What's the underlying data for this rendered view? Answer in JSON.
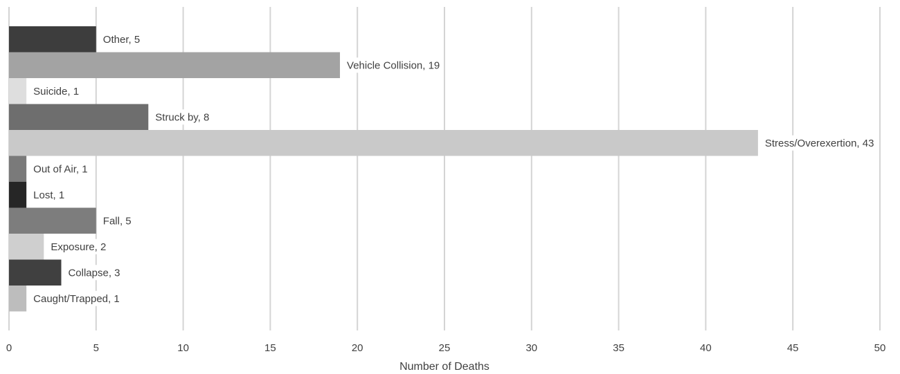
{
  "chart_data": {
    "type": "bar",
    "orientation": "horizontal",
    "title": "",
    "xlabel": "Number of Deaths",
    "ylabel": "",
    "xlim": [
      0,
      50
    ],
    "x_ticks": [
      0,
      5,
      10,
      15,
      20,
      25,
      30,
      35,
      40,
      45,
      50
    ],
    "grid": "vertical",
    "legend": "none",
    "bars": [
      {
        "category": "Other",
        "value": 5,
        "label": "Other, 5",
        "color": "#3d3d3d"
      },
      {
        "category": "Vehicle Collision",
        "value": 19,
        "label": "Vehicle Collision, 19",
        "color": "#a3a3a3"
      },
      {
        "category": "Suicide",
        "value": 1,
        "label": "Suicide, 1",
        "color": "#dedede"
      },
      {
        "category": "Struck by",
        "value": 8,
        "label": "Struck by, 8",
        "color": "#6e6e6e"
      },
      {
        "category": "Stress/Overexertion",
        "value": 43,
        "label": "Stress/Overexertion, 43",
        "color": "#c9c9c9"
      },
      {
        "category": "Out of Air",
        "value": 1,
        "label": "Out of Air, 1",
        "color": "#7a7a7a"
      },
      {
        "category": "Lost",
        "value": 1,
        "label": "Lost, 1",
        "color": "#262626"
      },
      {
        "category": "Fall",
        "value": 5,
        "label": "Fall, 5",
        "color": "#7d7d7d"
      },
      {
        "category": "Exposure",
        "value": 2,
        "label": "Exposure, 2",
        "color": "#cfcfcf"
      },
      {
        "category": "Collapse",
        "value": 3,
        "label": "Collapse, 3",
        "color": "#404040"
      },
      {
        "category": "Caught/Trapped",
        "value": 1,
        "label": "Caught/Trapped, 1",
        "color": "#bdbdbd"
      }
    ]
  }
}
